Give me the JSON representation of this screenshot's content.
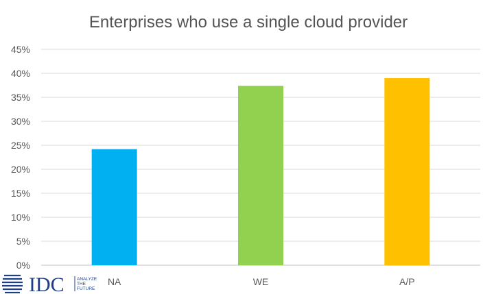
{
  "chart_data": {
    "type": "bar",
    "title": "Enterprises who use a single cloud provider",
    "categories": [
      "NA",
      "WE",
      "A/P"
    ],
    "values": [
      24.2,
      37.4,
      39.0
    ],
    "colors": [
      "#00b0f0",
      "#92d050",
      "#ffc000"
    ],
    "ylim": [
      0,
      45
    ],
    "yticks": [
      0,
      5,
      10,
      15,
      20,
      25,
      30,
      35,
      40,
      45
    ],
    "ytick_format": "%",
    "grid": true,
    "legend": "none"
  },
  "logo": {
    "name": "IDC",
    "tagline": [
      "ANALYZE",
      "THE",
      "FUTURE"
    ],
    "color": "#1d3f87"
  }
}
